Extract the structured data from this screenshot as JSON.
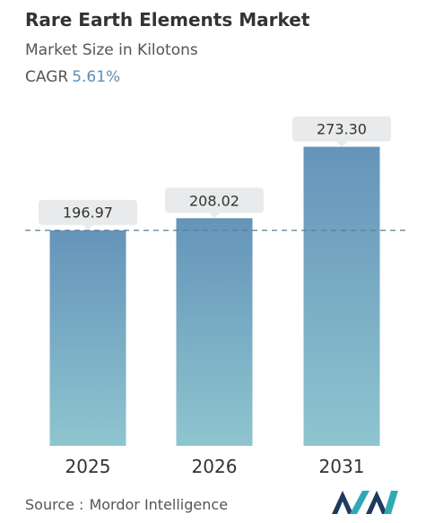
{
  "header": {
    "title": "Rare Earth Elements Market",
    "subtitle": "Market Size in Kilotons",
    "cagr_label": "CAGR",
    "cagr_value": "5.61%"
  },
  "footer": {
    "source_label": "Source :",
    "source_value": "Mordor Intelligence"
  },
  "colors": {
    "bar_top": "#6594ba",
    "bar_bottom": "#8ec5cf",
    "label_box": "#e8eaeb",
    "dashed_line": "#5a7f95",
    "text": "#333333",
    "accent": "#5b8fb5"
  },
  "chart_data": {
    "type": "bar",
    "title": "Rare Earth Elements Market",
    "subtitle": "Market Size in Kilotons",
    "categories": [
      "2025",
      "2026",
      "2031"
    ],
    "values": [
      196.97,
      208.02,
      273.3
    ],
    "value_labels": [
      "196.97",
      "208.02",
      "273.30"
    ],
    "reference_line": 196.97,
    "grid": false,
    "legend": "none"
  }
}
